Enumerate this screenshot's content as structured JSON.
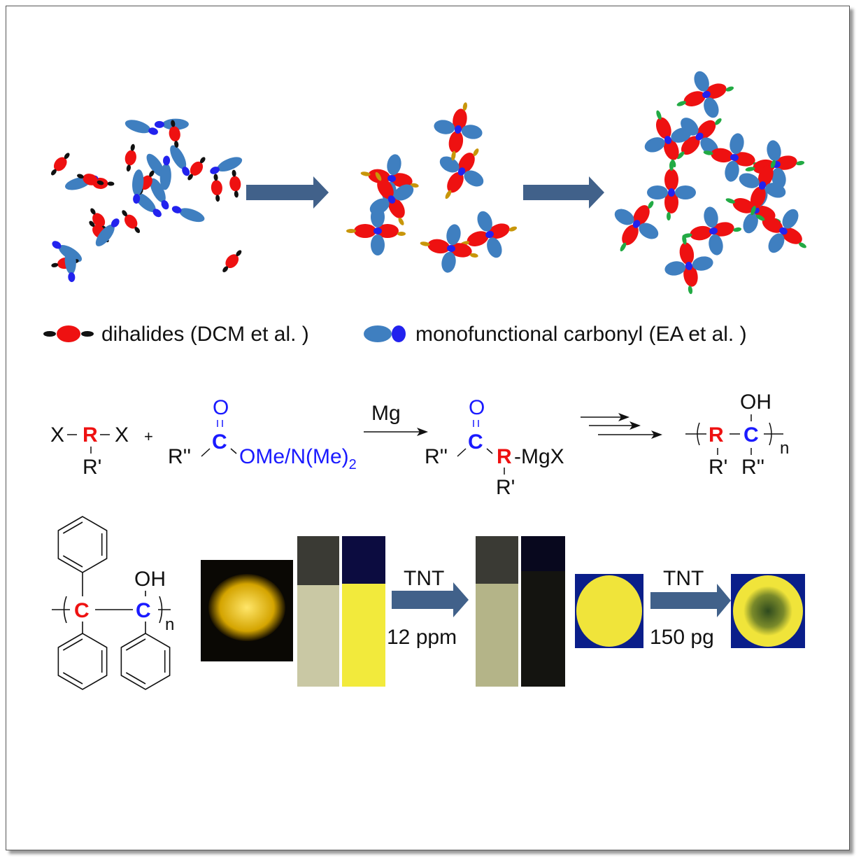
{
  "legend": {
    "dihalides": "dihalides (DCM et al. )",
    "carbonyl": "monofunctional carbonyl (EA et al. )"
  },
  "scheme": {
    "x": "X",
    "r": "R",
    "r1": "R'",
    "r2": "R''",
    "plus": "+",
    "o": "O",
    "c": "C",
    "leaving_group": "OMe/N(Me)",
    "leaving_sub": "2",
    "mg": "Mg",
    "mgx": "-MgX",
    "oh": "OH",
    "n": "n"
  },
  "detection": {
    "tnt": "TNT",
    "solution_conc": "12 ppm",
    "paper_amount": "150 pg"
  },
  "colors": {
    "dihalide": "#ee1111",
    "carbonyl_body": "#3f7fc0",
    "carbonyl_head": "#2222ee",
    "arrow": "#41618a",
    "fluorescent_yellow": "#f4ec3a"
  }
}
